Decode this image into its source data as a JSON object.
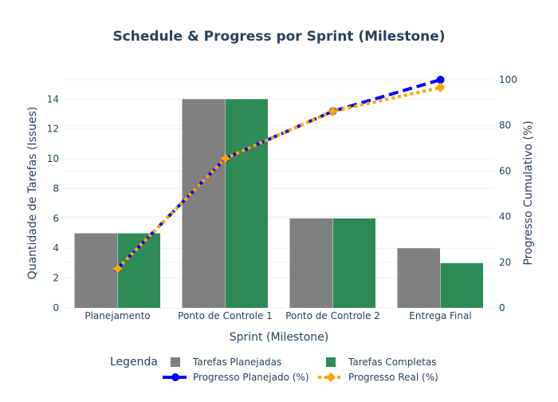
{
  "chart_data": {
    "type": "bar",
    "title": "Schedule & Progress por Sprint (Milestone)",
    "xlabel": "Sprint (Milestone)",
    "ylabel": "Quantidade de Tarefas (Issues)",
    "y2label": "Progresso Cumulativo (%)",
    "categories": [
      "Planejamento",
      "Ponto de Controle 1",
      "Ponto de Controle 2",
      "Entrega Final"
    ],
    "ylim": [
      0,
      15.3
    ],
    "y2lim": [
      0,
      100
    ],
    "yticks": [
      0,
      2,
      4,
      6,
      8,
      10,
      12,
      14
    ],
    "y2ticks": [
      0,
      20,
      40,
      60,
      80,
      100
    ],
    "grid": true,
    "legend_title": "Legenda",
    "legend_position": "bottom",
    "series": [
      {
        "name": "Tarefas Planejadas",
        "kind": "bar",
        "axis": "y",
        "color": "#808080",
        "values": [
          5,
          14,
          6,
          4
        ]
      },
      {
        "name": "Tarefas Completas",
        "kind": "bar",
        "axis": "y",
        "color": "#2e8b57",
        "values": [
          5,
          14,
          6,
          3
        ]
      },
      {
        "name": "Progresso Planejado (%)",
        "kind": "line",
        "axis": "y2",
        "color": "#0000ff",
        "dash": "dash",
        "values": [
          17.2,
          65.5,
          86.2,
          100
        ]
      },
      {
        "name": "Progresso Real (%)",
        "kind": "line",
        "axis": "y2",
        "color": "#ffa500",
        "dash": "dot",
        "values": [
          17.2,
          65.5,
          86.2,
          96.6
        ]
      }
    ]
  }
}
